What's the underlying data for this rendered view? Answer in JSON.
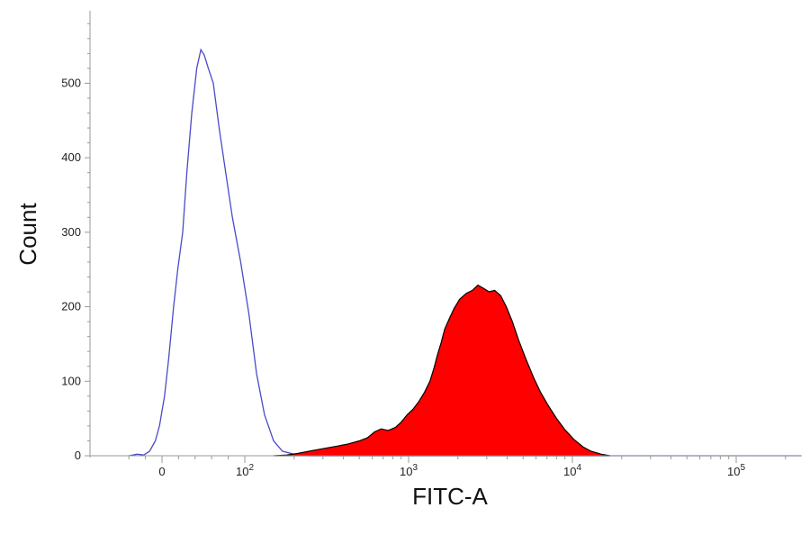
{
  "chart_data": {
    "type": "area",
    "xlabel": "FITC-A",
    "ylabel": "Count",
    "x_scale": "biexponential",
    "xlim": [
      -50,
      250000
    ],
    "ylim": [
      0,
      590
    ],
    "y_ticks": [
      0,
      100,
      200,
      300,
      400,
      500
    ],
    "x_ticks": [
      {
        "value": 0,
        "label": "0",
        "exp": ""
      },
      {
        "value": 100,
        "label": "10",
        "exp": "2"
      },
      {
        "value": 1000,
        "label": "10",
        "exp": "3"
      },
      {
        "value": 10000,
        "label": "10",
        "exp": "4"
      },
      {
        "value": 100000,
        "label": "10",
        "exp": "5"
      }
    ],
    "grid": false,
    "legend": "none",
    "series": [
      {
        "style": "outline",
        "color": "#4a4ac8",
        "points": [
          [
            -40,
            0
          ],
          [
            -30,
            2
          ],
          [
            -22,
            1
          ],
          [
            -15,
            6
          ],
          [
            -8,
            20
          ],
          [
            -3,
            40
          ],
          [
            3,
            80
          ],
          [
            8,
            130
          ],
          [
            14,
            200
          ],
          [
            19,
            250
          ],
          [
            25,
            300
          ],
          [
            30,
            380
          ],
          [
            36,
            460
          ],
          [
            42,
            520
          ],
          [
            47,
            545
          ],
          [
            51,
            538
          ],
          [
            56,
            520
          ],
          [
            62,
            500
          ],
          [
            69,
            440
          ],
          [
            77,
            380
          ],
          [
            85,
            320
          ],
          [
            95,
            260
          ],
          [
            106,
            190
          ],
          [
            118,
            110
          ],
          [
            132,
            55
          ],
          [
            150,
            20
          ],
          [
            170,
            6
          ],
          [
            200,
            2
          ],
          [
            250,
            0
          ],
          [
            1000,
            0
          ],
          [
            10000,
            0
          ],
          [
            100000,
            0
          ],
          [
            250000,
            0
          ]
        ]
      },
      {
        "style": "filled",
        "color": "#ff0000",
        "stroke": "#000000",
        "points": [
          [
            150,
            0
          ],
          [
            180,
            1
          ],
          [
            210,
            3
          ],
          [
            260,
            7
          ],
          [
            310,
            10
          ],
          [
            370,
            13
          ],
          [
            430,
            16
          ],
          [
            500,
            20
          ],
          [
            560,
            24
          ],
          [
            620,
            32
          ],
          [
            680,
            36
          ],
          [
            750,
            34
          ],
          [
            830,
            38
          ],
          [
            900,
            45
          ],
          [
            980,
            55
          ],
          [
            1060,
            62
          ],
          [
            1150,
            72
          ],
          [
            1250,
            85
          ],
          [
            1350,
            100
          ],
          [
            1430,
            118
          ],
          [
            1500,
            135
          ],
          [
            1580,
            152
          ],
          [
            1660,
            170
          ],
          [
            1780,
            185
          ],
          [
            1900,
            198
          ],
          [
            2050,
            210
          ],
          [
            2250,
            218
          ],
          [
            2450,
            222
          ],
          [
            2650,
            229
          ],
          [
            2850,
            225
          ],
          [
            3100,
            220
          ],
          [
            3350,
            222
          ],
          [
            3650,
            215
          ],
          [
            3950,
            200
          ],
          [
            4300,
            180
          ],
          [
            4700,
            155
          ],
          [
            5200,
            130
          ],
          [
            5800,
            105
          ],
          [
            6400,
            85
          ],
          [
            7100,
            68
          ],
          [
            8000,
            50
          ],
          [
            9000,
            35
          ],
          [
            10200,
            22
          ],
          [
            11600,
            12
          ],
          [
            13000,
            6
          ],
          [
            15000,
            2
          ],
          [
            17000,
            0
          ]
        ]
      }
    ]
  }
}
